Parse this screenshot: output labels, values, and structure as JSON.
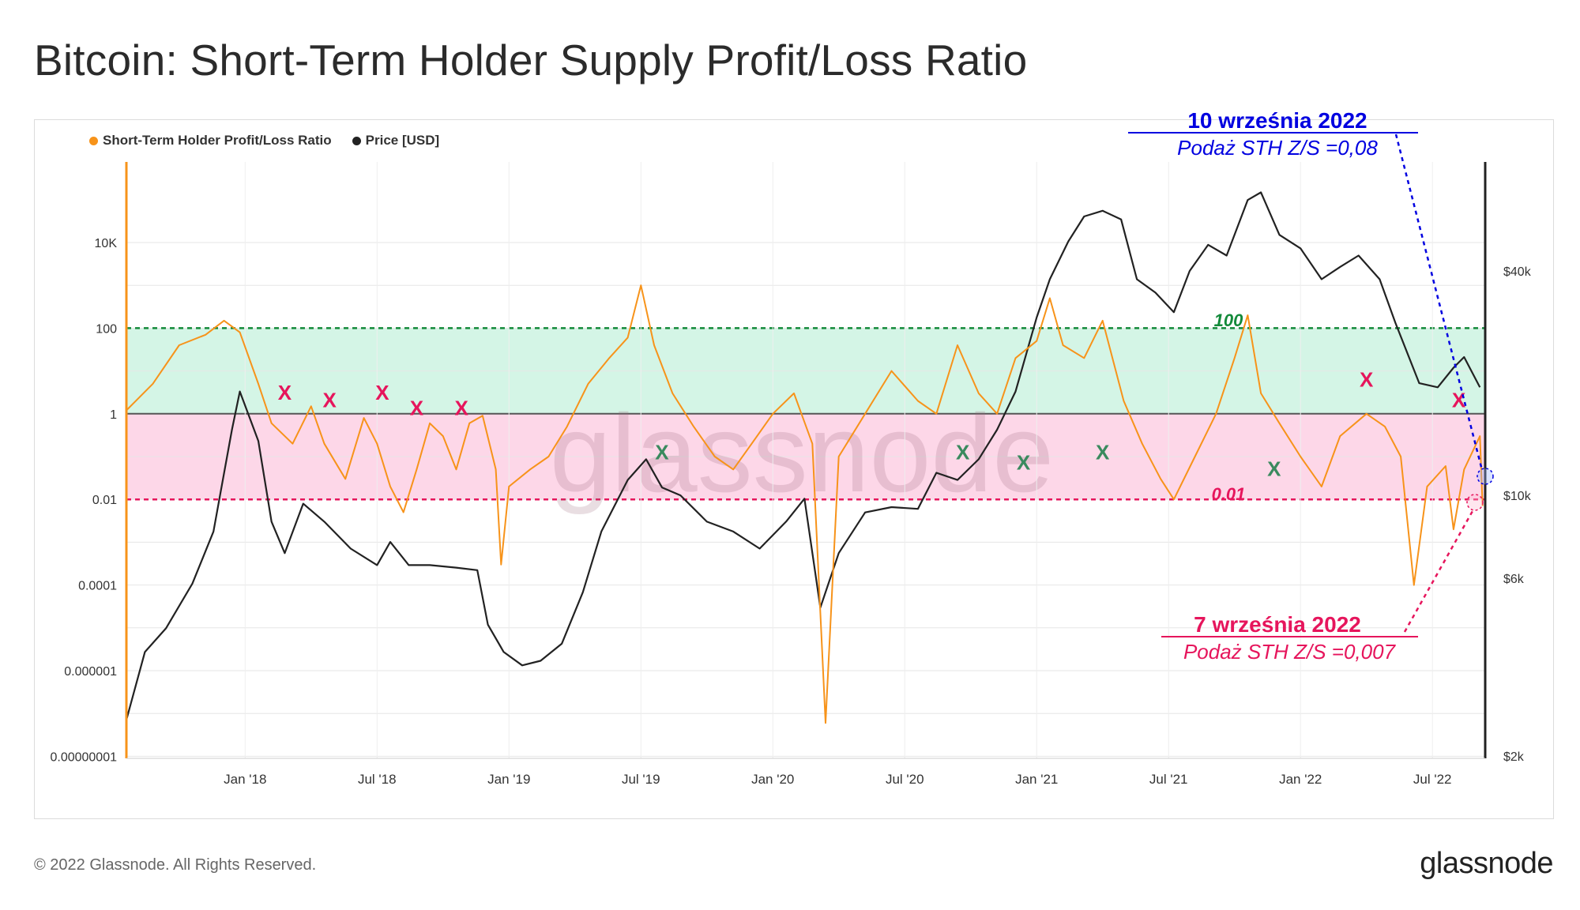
{
  "title": "Bitcoin: Short-Term Holder Supply Profit/Loss Ratio",
  "legend": [
    {
      "label": "Short-Term Holder Profit/Loss Ratio",
      "color": "#f7931a"
    },
    {
      "label": "Price [USD]",
      "color": "#222222"
    }
  ],
  "watermark": "glassnode",
  "footer": "© 2022 Glassnode. All Rights Reserved.",
  "brand": "glassnode",
  "chart_data": {
    "type": "line",
    "x_ticks": [
      "Jan '18",
      "Jul '18",
      "Jan '19",
      "Jul '19",
      "Jan '20",
      "Jul '20",
      "Jan '21",
      "Jul '21",
      "Jan '22",
      "Jul '22"
    ],
    "y_left_ticks": [
      "10K",
      "100",
      "1",
      "0.01",
      "0.0001",
      "0.000001",
      "0.00000001"
    ],
    "y_left_exponents": [
      4,
      2,
      0,
      -2,
      -4,
      -6,
      -8
    ],
    "y_right_ticks": [
      "$40k",
      "$10k",
      "$6k",
      "$2k"
    ],
    "y_right_values": [
      40000,
      10000,
      6000,
      2000
    ],
    "bands": {
      "upper": 100,
      "mid": 1,
      "lower": 0.01,
      "upper_label": "100",
      "lower_label": "0.01"
    },
    "series": [
      {
        "name": "Short-Term Holder Profit/Loss Ratio",
        "axis": "left",
        "color": "#f7931a",
        "points": [
          [
            2017.55,
            1.2
          ],
          [
            2017.65,
            5
          ],
          [
            2017.75,
            40
          ],
          [
            2017.85,
            70
          ],
          [
            2017.92,
            150
          ],
          [
            2017.98,
            80
          ],
          [
            2018.05,
            5
          ],
          [
            2018.1,
            0.6
          ],
          [
            2018.18,
            0.2
          ],
          [
            2018.25,
            1.5
          ],
          [
            2018.3,
            0.2
          ],
          [
            2018.38,
            0.03
          ],
          [
            2018.45,
            0.8
          ],
          [
            2018.5,
            0.2
          ],
          [
            2018.55,
            0.02
          ],
          [
            2018.6,
            0.005
          ],
          [
            2018.65,
            0.05
          ],
          [
            2018.7,
            0.6
          ],
          [
            2018.75,
            0.3
          ],
          [
            2018.8,
            0.05
          ],
          [
            2018.85,
            0.6
          ],
          [
            2018.9,
            0.9
          ],
          [
            2018.95,
            0.05
          ],
          [
            2018.97,
            0.0003
          ],
          [
            2019.0,
            0.02
          ],
          [
            2019.08,
            0.05
          ],
          [
            2019.15,
            0.1
          ],
          [
            2019.22,
            0.5
          ],
          [
            2019.3,
            5
          ],
          [
            2019.38,
            20
          ],
          [
            2019.45,
            60
          ],
          [
            2019.5,
            1000
          ],
          [
            2019.55,
            40
          ],
          [
            2019.62,
            3
          ],
          [
            2019.7,
            0.5
          ],
          [
            2019.78,
            0.1
          ],
          [
            2019.85,
            0.05
          ],
          [
            2019.92,
            0.2
          ],
          [
            2020.0,
            1
          ],
          [
            2020.08,
            3
          ],
          [
            2020.15,
            0.2
          ],
          [
            2020.2,
            6e-08
          ],
          [
            2020.25,
            0.1
          ],
          [
            2020.35,
            1
          ],
          [
            2020.45,
            10
          ],
          [
            2020.55,
            2
          ],
          [
            2020.62,
            1
          ],
          [
            2020.7,
            40
          ],
          [
            2020.78,
            3
          ],
          [
            2020.85,
            1
          ],
          [
            2020.92,
            20
          ],
          [
            2021.0,
            50
          ],
          [
            2021.05,
            500
          ],
          [
            2021.1,
            40
          ],
          [
            2021.18,
            20
          ],
          [
            2021.25,
            150
          ],
          [
            2021.33,
            2
          ],
          [
            2021.4,
            0.2
          ],
          [
            2021.47,
            0.03
          ],
          [
            2021.52,
            0.01
          ],
          [
            2021.6,
            0.1
          ],
          [
            2021.68,
            1
          ],
          [
            2021.75,
            20
          ],
          [
            2021.8,
            200
          ],
          [
            2021.85,
            3
          ],
          [
            2021.92,
            0.6
          ],
          [
            2022.0,
            0.1
          ],
          [
            2022.08,
            0.02
          ],
          [
            2022.15,
            0.3
          ],
          [
            2022.25,
            1
          ],
          [
            2022.32,
            0.5
          ],
          [
            2022.38,
            0.1
          ],
          [
            2022.43,
            0.0001
          ],
          [
            2022.48,
            0.02
          ],
          [
            2022.55,
            0.06
          ],
          [
            2022.58,
            0.002
          ],
          [
            2022.62,
            0.05
          ],
          [
            2022.68,
            0.3
          ],
          [
            2022.69,
            0.007
          ]
        ]
      },
      {
        "name": "Price [USD]",
        "axis": "right",
        "color": "#222222",
        "points": [
          [
            2017.55,
            2500
          ],
          [
            2017.62,
            3800
          ],
          [
            2017.7,
            4400
          ],
          [
            2017.8,
            5800
          ],
          [
            2017.88,
            8000
          ],
          [
            2017.95,
            15000
          ],
          [
            2017.98,
            19000
          ],
          [
            2018.05,
            14000
          ],
          [
            2018.1,
            8500
          ],
          [
            2018.15,
            7000
          ],
          [
            2018.22,
            9500
          ],
          [
            2018.3,
            8500
          ],
          [
            2018.4,
            7200
          ],
          [
            2018.5,
            6500
          ],
          [
            2018.55,
            7500
          ],
          [
            2018.62,
            6500
          ],
          [
            2018.7,
            6500
          ],
          [
            2018.8,
            6400
          ],
          [
            2018.88,
            6300
          ],
          [
            2018.92,
            4500
          ],
          [
            2018.98,
            3800
          ],
          [
            2019.05,
            3500
          ],
          [
            2019.12,
            3600
          ],
          [
            2019.2,
            4000
          ],
          [
            2019.28,
            5500
          ],
          [
            2019.35,
            8000
          ],
          [
            2019.45,
            11000
          ],
          [
            2019.52,
            12500
          ],
          [
            2019.58,
            10500
          ],
          [
            2019.65,
            10000
          ],
          [
            2019.75,
            8500
          ],
          [
            2019.85,
            8000
          ],
          [
            2019.95,
            7200
          ],
          [
            2020.05,
            8500
          ],
          [
            2020.12,
            9800
          ],
          [
            2020.18,
            5000
          ],
          [
            2020.25,
            7000
          ],
          [
            2020.35,
            9000
          ],
          [
            2020.45,
            9300
          ],
          [
            2020.55,
            9200
          ],
          [
            2020.62,
            11500
          ],
          [
            2020.7,
            11000
          ],
          [
            2020.78,
            12500
          ],
          [
            2020.85,
            15000
          ],
          [
            2020.92,
            19000
          ],
          [
            2021.0,
            30000
          ],
          [
            2021.05,
            38000
          ],
          [
            2021.12,
            48000
          ],
          [
            2021.18,
            56000
          ],
          [
            2021.25,
            58000
          ],
          [
            2021.32,
            55000
          ],
          [
            2021.38,
            38000
          ],
          [
            2021.45,
            35000
          ],
          [
            2021.52,
            31000
          ],
          [
            2021.58,
            40000
          ],
          [
            2021.65,
            47000
          ],
          [
            2021.72,
            44000
          ],
          [
            2021.8,
            62000
          ],
          [
            2021.85,
            65000
          ],
          [
            2021.92,
            50000
          ],
          [
            2022.0,
            46000
          ],
          [
            2022.08,
            38000
          ],
          [
            2022.15,
            41000
          ],
          [
            2022.22,
            44000
          ],
          [
            2022.3,
            38000
          ],
          [
            2022.36,
            29000
          ],
          [
            2022.45,
            20000
          ],
          [
            2022.52,
            19500
          ],
          [
            2022.58,
            22000
          ],
          [
            2022.62,
            23500
          ],
          [
            2022.68,
            19500
          ]
        ]
      }
    ],
    "markers_red": [
      [
        2018.15,
        3
      ],
      [
        2018.32,
        2
      ],
      [
        2018.52,
        3
      ],
      [
        2018.65,
        1.3
      ],
      [
        2018.82,
        1.3
      ],
      [
        2022.25,
        6
      ],
      [
        2022.6,
        2
      ]
    ],
    "markers_green": [
      [
        2019.58,
        0.12
      ],
      [
        2020.72,
        0.12
      ],
      [
        2020.95,
        0.07
      ],
      [
        2021.25,
        0.12
      ],
      [
        2021.9,
        0.05
      ]
    ],
    "annotations": [
      {
        "id": "blue",
        "date": "10 września 2022",
        "text": "Podaż STH Z/S =0,08",
        "color": "#0000e0"
      },
      {
        "id": "pink",
        "date": "7 września 2022",
        "text": "Podaż STH Z/S =0,007",
        "color": "#e6155c"
      }
    ]
  }
}
